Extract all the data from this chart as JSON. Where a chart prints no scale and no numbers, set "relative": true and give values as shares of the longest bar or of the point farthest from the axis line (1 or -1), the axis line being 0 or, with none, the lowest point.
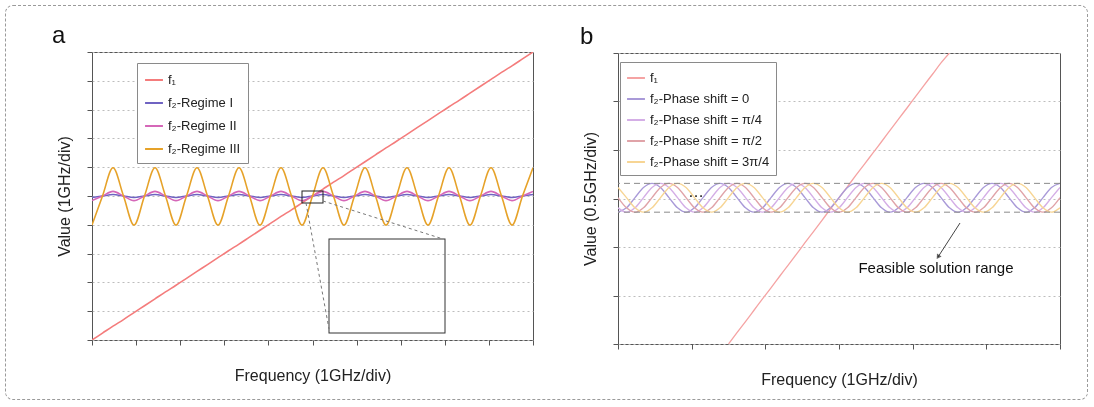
{
  "chart_data": [
    {
      "type": "line",
      "title": "a",
      "xlabel": "Frequency (1GHz/div)",
      "ylabel": "Value (1GHz/div)",
      "relative": true,
      "grid": "y",
      "legend": "top left",
      "categories": [
        null,
        null,
        null,
        null,
        null,
        null,
        null,
        null,
        null,
        null,
        null,
        null,
        null,
        null,
        null,
        null,
        null,
        null,
        null,
        null,
        null,
        null,
        null,
        null,
        null,
        null,
        null,
        null,
        null,
        null,
        null,
        null,
        null,
        null,
        null,
        null,
        null,
        null,
        null,
        null,
        null,
        null,
        null
      ],
      "series": [
        {
          "name": "f₁",
          "color": "#f47c7c",
          "values": [
            0,
            0.024,
            0.048,
            0.071,
            0.095,
            0.119,
            0.143,
            0.167,
            0.19,
            0.214,
            0.238,
            0.262,
            0.286,
            0.31,
            0.333,
            0.357,
            0.381,
            0.405,
            0.429,
            0.452,
            0.476,
            0.5,
            0.524,
            0.548,
            0.571,
            0.595,
            0.619,
            0.643,
            0.667,
            0.69,
            0.714,
            0.738,
            0.762,
            0.786,
            0.81,
            0.833,
            0.857,
            0.881,
            0.905,
            0.929,
            0.952,
            0.976,
            1
          ]
        },
        {
          "name": "f₂-Regime I",
          "color": "#6f63c2",
          "values": [
            0.495,
            0.5,
            0.505,
            0.5,
            0.495,
            0.5,
            0.505,
            0.5,
            0.495,
            0.5,
            0.505,
            0.5,
            0.495,
            0.5,
            0.505,
            0.5,
            0.495,
            0.5,
            0.505,
            0.5,
            0.495,
            0.5,
            0.505,
            0.5,
            0.495,
            0.5,
            0.505,
            0.5,
            0.495,
            0.5,
            0.505,
            0.5,
            0.495,
            0.5,
            0.505,
            0.5,
            0.495,
            0.5,
            0.505,
            0.5,
            0.495,
            0.5,
            0.505
          ]
        },
        {
          "name": "f₂-Regime II",
          "color": "#d567b8",
          "values": [
            0.484,
            0.5,
            0.516,
            0.5,
            0.484,
            0.5,
            0.516,
            0.5,
            0.484,
            0.5,
            0.516,
            0.5,
            0.484,
            0.5,
            0.516,
            0.5,
            0.484,
            0.5,
            0.516,
            0.5,
            0.484,
            0.5,
            0.516,
            0.5,
            0.484,
            0.5,
            0.516,
            0.5,
            0.484,
            0.5,
            0.516,
            0.5,
            0.484,
            0.5,
            0.516,
            0.5,
            0.484,
            0.5,
            0.516,
            0.5,
            0.484,
            0.5,
            0.516
          ]
        },
        {
          "name": "f₂-Regime III",
          "color": "#e6a229",
          "values": [
            0.399,
            0.5,
            0.598,
            0.5,
            0.399,
            0.5,
            0.598,
            0.5,
            0.399,
            0.5,
            0.598,
            0.5,
            0.399,
            0.5,
            0.598,
            0.5,
            0.399,
            0.5,
            0.598,
            0.5,
            0.399,
            0.5,
            0.598,
            0.5,
            0.399,
            0.5,
            0.598,
            0.5,
            0.399,
            0.5,
            0.598,
            0.5,
            0.399,
            0.5,
            0.598,
            0.5,
            0.399,
            0.5,
            0.598,
            0.5,
            0.399,
            0.5,
            0.598
          ]
        }
      ]
    },
    {
      "type": "line",
      "title": "b",
      "xlabel": "Frequency (1GHz/div)",
      "ylabel": "Value (0.5GHz/div)",
      "relative": true,
      "grid": "y",
      "legend": "top left",
      "categories": [
        null,
        null,
        null,
        null,
        null,
        null,
        null,
        null,
        null,
        null,
        null,
        null,
        null,
        null,
        null,
        null,
        null,
        null,
        null,
        null,
        null,
        null,
        null,
        null,
        null,
        null,
        null,
        null,
        null,
        null,
        null,
        null,
        null,
        null,
        null,
        null,
        null,
        null,
        null,
        null,
        null,
        null,
        null,
        null,
        null,
        null,
        null,
        null,
        null,
        null,
        null,
        null,
        null
      ],
      "series": [
        {
          "name": "f₁",
          "color": "#f5a3a3",
          "values": [
            null,
            null,
            null,
            null,
            null,
            null,
            null,
            null,
            null,
            null,
            null,
            null,
            null,
            0,
            0.039,
            0.077,
            0.116,
            0.155,
            0.193,
            0.232,
            0.27,
            0.309,
            0.348,
            0.386,
            0.425,
            0.464,
            0.502,
            0.541,
            0.58,
            0.618,
            0.657,
            0.695,
            0.734,
            0.773,
            0.811,
            0.85,
            0.889,
            0.927,
            0.966,
            1,
            null,
            null,
            null,
            null,
            null,
            null,
            null,
            null,
            null,
            null,
            null,
            null,
            null
          ]
        },
        {
          "name": "f₂-Phase shift = 0",
          "color": "#a99ad8",
          "values": [
            0.453,
            0.468,
            0.503,
            0.538,
            0.552,
            0.538,
            0.503,
            0.468,
            0.453,
            0.468,
            0.503,
            0.538,
            0.552,
            0.538,
            0.503,
            0.468,
            0.453,
            0.468,
            0.503,
            0.538,
            0.552,
            0.538,
            0.503,
            0.468,
            0.453,
            0.468,
            0.503,
            0.538,
            0.552,
            0.538,
            0.503,
            0.468,
            0.453,
            0.468,
            0.503,
            0.538,
            0.552,
            0.538,
            0.503,
            0.468,
            0.453,
            0.468,
            0.503,
            0.538,
            0.552,
            0.538,
            0.503,
            0.468,
            0.453,
            0.468,
            0.503,
            0.538,
            0.552
          ]
        },
        {
          "name": "f₂-Phase shift = π/4",
          "color": "#d4aee6",
          "values": [
            0.468,
            0.453,
            0.468,
            0.503,
            0.538,
            0.552,
            0.538,
            0.503,
            0.468,
            0.453,
            0.468,
            0.503,
            0.538,
            0.552,
            0.538,
            0.503,
            0.468,
            0.453,
            0.468,
            0.503,
            0.538,
            0.552,
            0.538,
            0.503,
            0.468,
            0.453,
            0.468,
            0.503,
            0.538,
            0.552,
            0.538,
            0.503,
            0.468,
            0.453,
            0.468,
            0.503,
            0.538,
            0.552,
            0.538,
            0.503,
            0.468,
            0.453,
            0.468,
            0.503,
            0.538,
            0.552,
            0.538,
            0.503,
            0.468,
            0.453,
            0.468,
            0.503,
            0.538
          ]
        },
        {
          "name": "f₂-Phase shift = π/2",
          "color": "#e0a3a8",
          "values": [
            0.503,
            0.468,
            0.453,
            0.468,
            0.503,
            0.538,
            0.552,
            0.538,
            0.503,
            0.468,
            0.453,
            0.468,
            0.503,
            0.538,
            0.552,
            0.538,
            0.503,
            0.468,
            0.453,
            0.468,
            0.503,
            0.538,
            0.552,
            0.538,
            0.503,
            0.468,
            0.453,
            0.468,
            0.503,
            0.538,
            0.552,
            0.538,
            0.503,
            0.468,
            0.453,
            0.468,
            0.503,
            0.538,
            0.552,
            0.538,
            0.503,
            0.468,
            0.453,
            0.468,
            0.503,
            0.538,
            0.552,
            0.538,
            0.503,
            0.468,
            0.453,
            0.468,
            0.503
          ]
        },
        {
          "name": "f₂-Phase shift = 3π/4",
          "color": "#f7d594",
          "values": [
            0.538,
            0.503,
            0.468,
            0.453,
            0.468,
            0.503,
            0.538,
            0.552,
            0.538,
            0.503,
            0.468,
            0.453,
            0.468,
            0.503,
            0.538,
            0.552,
            0.538,
            0.503,
            0.468,
            0.453,
            0.468,
            0.503,
            0.538,
            0.552,
            0.538,
            0.503,
            0.468,
            0.453,
            0.468,
            0.503,
            0.538,
            0.552,
            0.538,
            0.503,
            0.468,
            0.453,
            0.468,
            0.503,
            0.538,
            0.552,
            0.538,
            0.503,
            0.468,
            0.453,
            0.468,
            0.503,
            0.538,
            0.552,
            0.538,
            0.503,
            0.468,
            0.453,
            0.468
          ]
        }
      ],
      "ref_lines": [
        {
          "axis": "y",
          "value": 0.453,
          "color": "#8a8a8a",
          "line_style": "dashed"
        },
        {
          "axis": "y",
          "value": 0.552,
          "color": "#8a8a8a",
          "line_style": "dashed"
        }
      ],
      "annotations": [
        "…",
        "Feasible solution range"
      ]
    }
  ]
}
